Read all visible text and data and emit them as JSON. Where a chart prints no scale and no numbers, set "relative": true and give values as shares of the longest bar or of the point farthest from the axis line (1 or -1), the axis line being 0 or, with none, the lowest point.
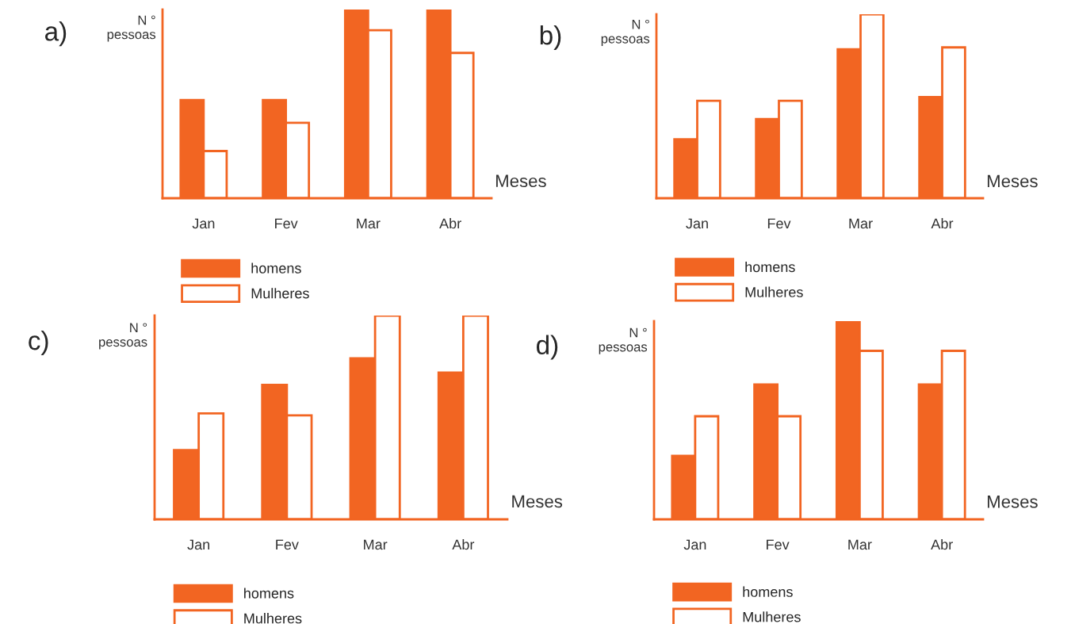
{
  "chart_data": [
    {
      "type": "bar",
      "title": "a)",
      "ylabel": "N °\npessoas",
      "xlabel": "Meses",
      "categories": [
        "Jan",
        "Fev",
        "Mar",
        "Abr"
      ],
      "relative": true,
      "legend": "bottom",
      "series": [
        {
          "name": "homens",
          "color": "#f26522",
          "values": [
            0.52,
            0.52,
            1,
            1
          ]
        },
        {
          "name": "Mulheres",
          "color": "#ffffff",
          "values": [
            0.25,
            0.4,
            0.89,
            0.77
          ]
        }
      ]
    },
    {
      "type": "bar",
      "title": "b)",
      "ylabel": "N °\npessoas",
      "xlabel": "Meses",
      "categories": [
        "Jan",
        "Fev",
        "Mar",
        "Abr"
      ],
      "relative": true,
      "legend": "bottom",
      "series": [
        {
          "name": "homens",
          "color": "#f26522",
          "values": [
            0.32,
            0.43,
            0.81,
            0.55
          ]
        },
        {
          "name": "Mulheres",
          "color": "#ffffff",
          "values": [
            0.53,
            0.53,
            1,
            0.82
          ]
        }
      ]
    },
    {
      "type": "bar",
      "title": "c)",
      "ylabel": "N °\npessoas",
      "xlabel": "Meses",
      "categories": [
        "Jan",
        "Fev",
        "Mar",
        "Abr"
      ],
      "relative": true,
      "legend": "bottom",
      "series": [
        {
          "name": "homens",
          "color": "#f26522",
          "values": [
            0.34,
            0.66,
            0.79,
            0.72
          ]
        },
        {
          "name": "Mulheres",
          "color": "#ffffff",
          "values": [
            0.52,
            0.51,
            1,
            1
          ]
        }
      ]
    },
    {
      "type": "bar",
      "title": "d)",
      "ylabel": "N °\npessoas",
      "xlabel": "Meses",
      "categories": [
        "Jan",
        "Fev",
        "Mar",
        "Abr"
      ],
      "relative": true,
      "legend": "bottom",
      "series": [
        {
          "name": "homens",
          "color": "#f26522",
          "values": [
            0.32,
            0.68,
            1,
            0.68
          ]
        },
        {
          "name": "Mulheres",
          "color": "#ffffff",
          "values": [
            0.52,
            0.52,
            0.85,
            0.85
          ]
        }
      ]
    }
  ]
}
